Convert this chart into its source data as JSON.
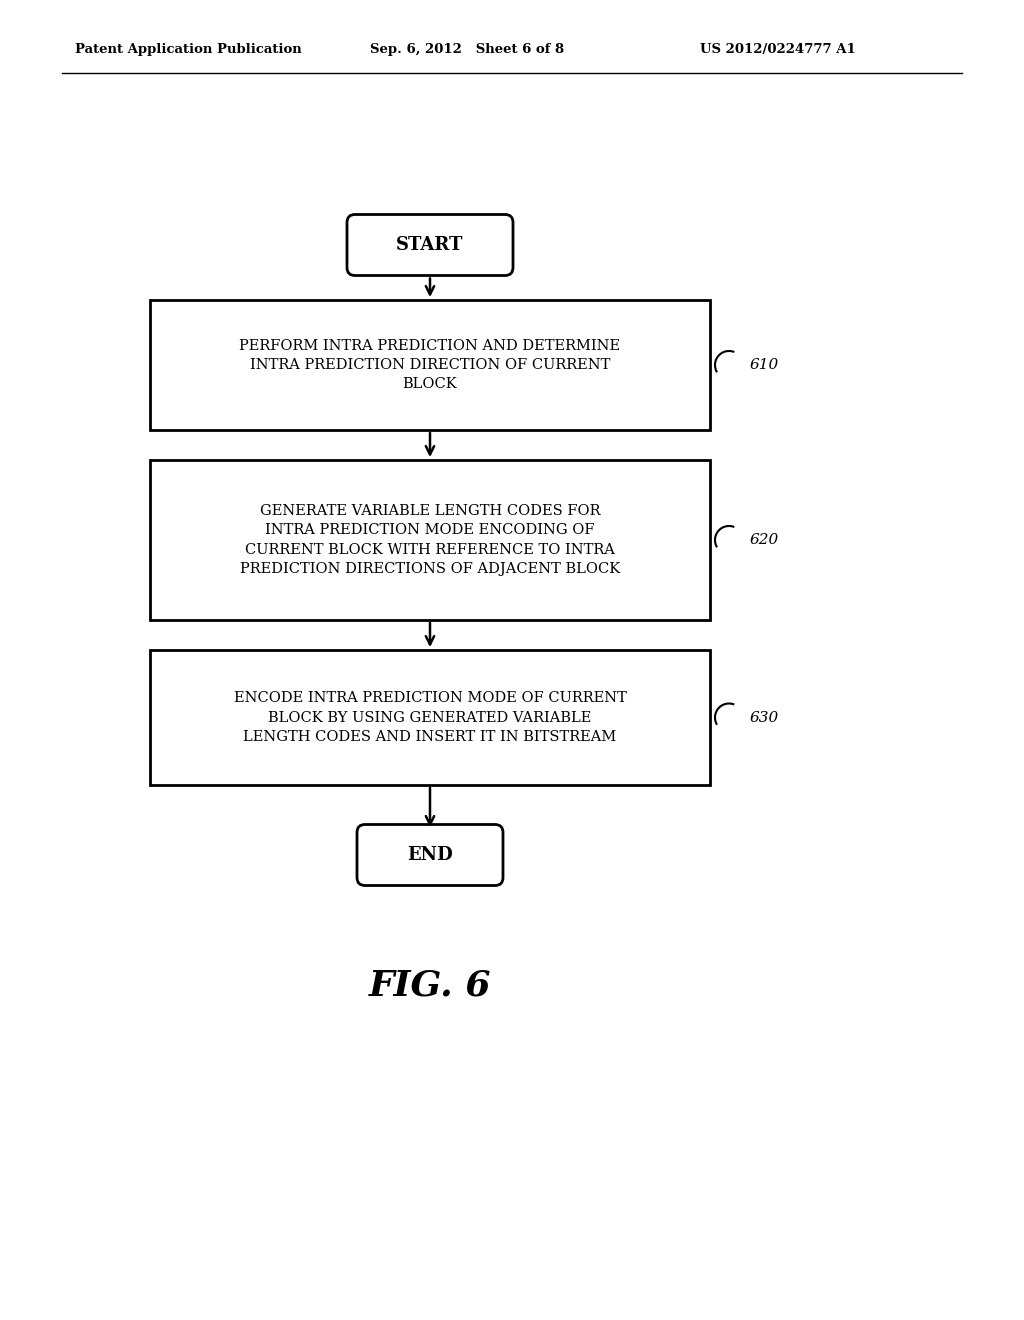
{
  "bg_color": "#ffffff",
  "header_left": "Patent Application Publication",
  "header_mid": "Sep. 6, 2012   Sheet 6 of 8",
  "header_right": "US 2012/0224777 A1",
  "header_fontsize": 9.5,
  "start_label": "START",
  "end_label": "END",
  "box1_text": "PERFORM INTRA PREDICTION AND DETERMINE\nINTRA PREDICTION DIRECTION OF CURRENT\nBLOCK",
  "box2_text": "GENERATE VARIABLE LENGTH CODES FOR\nINTRA PREDICTION MODE ENCODING OF\nCURRENT BLOCK WITH REFERENCE TO INTRA\nPREDICTION DIRECTIONS OF ADJACENT BLOCK",
  "box3_text": "ENCODE INTRA PREDICTION MODE OF CURRENT\nBLOCK BY USING GENERATED VARIABLE\nLENGTH CODES AND INSERT IT IN BITSTREAM",
  "label1": "610",
  "label2": "620",
  "label3": "630",
  "fig_label": "FIG. 6",
  "text_fontsize": 10.5,
  "label_fontsize": 11,
  "fig_fontsize": 26
}
